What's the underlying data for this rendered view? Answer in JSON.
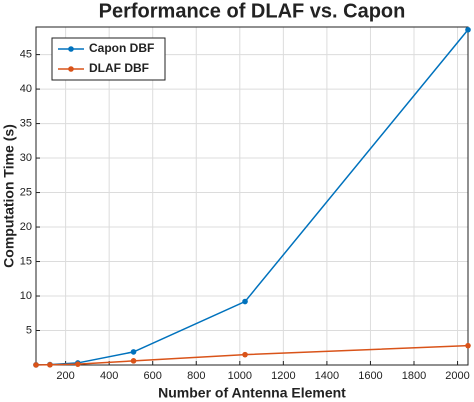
{
  "chart_data": {
    "type": "line",
    "title": "Performance of DLAF vs. Capon",
    "x_label": "Number of Antenna Element",
    "y_label": "Computation Time (s)",
    "x": [
      64,
      128,
      256,
      512,
      1024,
      2048
    ],
    "series": [
      {
        "name": "Capon DBF",
        "color": "#0072bd",
        "values": [
          0.02,
          0.06,
          0.3,
          1.9,
          9.2,
          48.6
        ]
      },
      {
        "name": "DLAF DBF",
        "color": "#d95319",
        "values": [
          0.01,
          0.03,
          0.12,
          0.6,
          1.5,
          2.8
        ]
      }
    ],
    "xlim": [
      64,
      2048
    ],
    "ylim": [
      0,
      49
    ],
    "xticks": [
      200,
      400,
      600,
      800,
      1000,
      1200,
      1400,
      1600,
      1800,
      2000
    ],
    "yticks": [
      5,
      10,
      15,
      20,
      25,
      30,
      35,
      40,
      45
    ],
    "grid": true,
    "legend": "top-left"
  }
}
